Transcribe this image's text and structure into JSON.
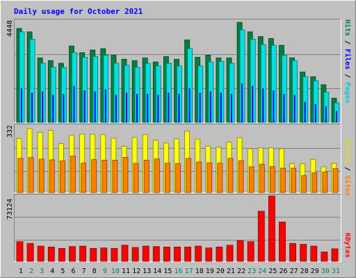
{
  "chart_data": [
    {
      "type": "bar",
      "panel": "hits-files-pages",
      "title": "Daily usage for October 2021",
      "y_tick_label": "4448",
      "ylim": [
        0,
        4448
      ],
      "categories": [
        "1",
        "2",
        "3",
        "4",
        "5",
        "6",
        "7",
        "8",
        "9",
        "10",
        "11",
        "12",
        "13",
        "14",
        "15",
        "16",
        "17",
        "18",
        "19",
        "20",
        "21",
        "22",
        "23",
        "24",
        "25",
        "26",
        "27",
        "28",
        "29",
        "30",
        "31"
      ],
      "weekend_days": [
        "2",
        "3",
        "9",
        "10",
        "16",
        "17",
        "23",
        "24",
        "30",
        "31"
      ],
      "legend": [
        "Pages",
        "/",
        "Files",
        "/",
        "Hits"
      ],
      "series": [
        {
          "name": "Hits",
          "color": "#008040",
          "values": [
            4113,
            3966,
            2824,
            2706,
            2589,
            3348,
            3054,
            3172,
            3230,
            2942,
            2765,
            2706,
            2824,
            2647,
            2882,
            2765,
            3613,
            2853,
            2941,
            2824,
            2824,
            4383,
            3966,
            3760,
            3672,
            3377,
            2824,
            2206,
            2000,
            1647,
            1059
          ]
        },
        {
          "name": "Files",
          "color": "#00e0e0",
          "values": [
            3966,
            3643,
            2588,
            2412,
            2411,
            3053,
            2853,
            2883,
            2941,
            2588,
            2500,
            2412,
            2583,
            2471,
            2588,
            2471,
            3232,
            2471,
            2647,
            2672,
            2588,
            4054,
            3643,
            3407,
            3377,
            2942,
            2706,
            2000,
            1824,
            1324,
            853
          ]
        },
        {
          "name": "Pages",
          "color": "#0000ff",
          "values": [
            1500,
            1300,
            1350,
            1200,
            1250,
            1600,
            1400,
            1350,
            1450,
            1200,
            1300,
            1250,
            1250,
            1200,
            1300,
            1250,
            1500,
            1300,
            1350,
            1300,
            1250,
            1700,
            1600,
            1500,
            1400,
            1250,
            1200,
            900,
            800,
            700,
            500
          ]
        }
      ]
    },
    {
      "type": "bar",
      "panel": "sites-visits",
      "y_tick_label": "332",
      "ylim": [
        0,
        332
      ],
      "legend": [
        "Sites",
        "/",
        "Visits"
      ],
      "series": [
        {
          "name": "Visits",
          "color": "#ffff00",
          "values": [
            269,
            318,
            299,
            309,
            244,
            284,
            290,
            290,
            288,
            270,
            230,
            274,
            288,
            260,
            246,
            267,
            305,
            266,
            231,
            225,
            250,
            273,
            218,
            222,
            222,
            218,
            143,
            143,
            165,
            128,
            145
          ]
        },
        {
          "name": "Sites",
          "color": "#ff8000",
          "values": [
            170,
            174,
            166,
            163,
            157,
            182,
            146,
            164,
            161,
            161,
            175,
            145,
            161,
            167,
            146,
            144,
            170,
            152,
            148,
            146,
            170,
            158,
            128,
            141,
            129,
            121,
            121,
            84,
            98,
            102,
            119
          ]
        }
      ]
    },
    {
      "type": "bar",
      "panel": "kbytes",
      "y_tick_label": "73124",
      "ylim": [
        0,
        73124
      ],
      "legend": [
        "KBytes"
      ],
      "series": [
        {
          "name": "KBytes",
          "color": "#ff0000",
          "values": [
            22000,
            20000,
            17000,
            16000,
            14500,
            16500,
            17000,
            14500,
            15000,
            14500,
            18000,
            15500,
            17000,
            16500,
            16000,
            16000,
            16000,
            17000,
            15000,
            16000,
            18000,
            23000,
            22000,
            56000,
            73124,
            44000,
            20000,
            19000,
            17000,
            10500,
            14000
          ]
        }
      ]
    }
  ],
  "colors": {
    "background": "#c0c0c0",
    "title": "#0000ff",
    "weekday_label": "#000000",
    "weekend_label": "#00805c"
  }
}
